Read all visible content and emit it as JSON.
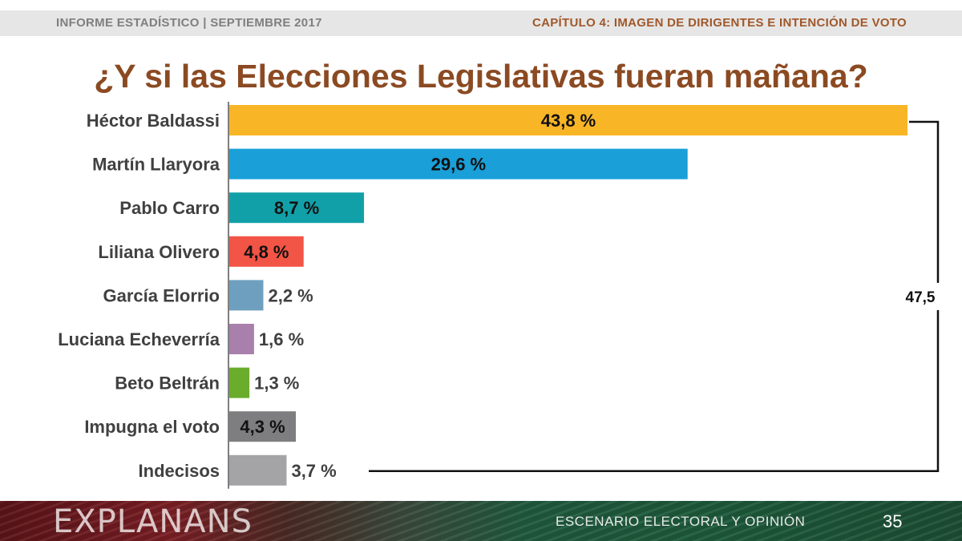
{
  "header": {
    "left": "INFORME ESTADÍSTICO  |  SEPTIEMBRE 2017",
    "right": "CAPÍTULO 4: IMAGEN DE DIRIGENTES E INTENCIÓN DE VOTO"
  },
  "chart_data": {
    "type": "bar",
    "orientation": "horizontal",
    "title": "¿Y si las Elecciones Legislativas fueran mañana?",
    "categories": [
      "Héctor Baldassi",
      "Martín Llaryora",
      "Pablo Carro",
      "Liliana Olivero",
      "García Elorrio",
      "Luciana Echeverría",
      "Beto Beltrán",
      "Impugna el voto",
      "Indecisos"
    ],
    "values": [
      43.8,
      29.6,
      8.7,
      4.8,
      2.2,
      1.6,
      1.3,
      4.3,
      3.7
    ],
    "labels": [
      "43,8 %",
      "29,6 %",
      "8,7 %",
      "4,8 %",
      "2,2 %",
      "1,6 %",
      "1,3 %",
      "4,3 %",
      "3,7 %"
    ],
    "colors": [
      "#f8b526",
      "#1a9fd8",
      "#12a0a8",
      "#f25445",
      "#6f9fbf",
      "#a97fab",
      "#6aac2c",
      "#7e7e80",
      "#a4a4a6"
    ],
    "xlim": [
      0,
      43.8
    ],
    "grid": false,
    "bracket": {
      "label": "47,5",
      "from_category": "Héctor Baldassi",
      "to_category": "Indecisos"
    }
  },
  "footer": {
    "logo": "EXPLANANS",
    "subtitle": "ESCENARIO ELECTORAL Y OPINIÓN",
    "page": "35"
  }
}
